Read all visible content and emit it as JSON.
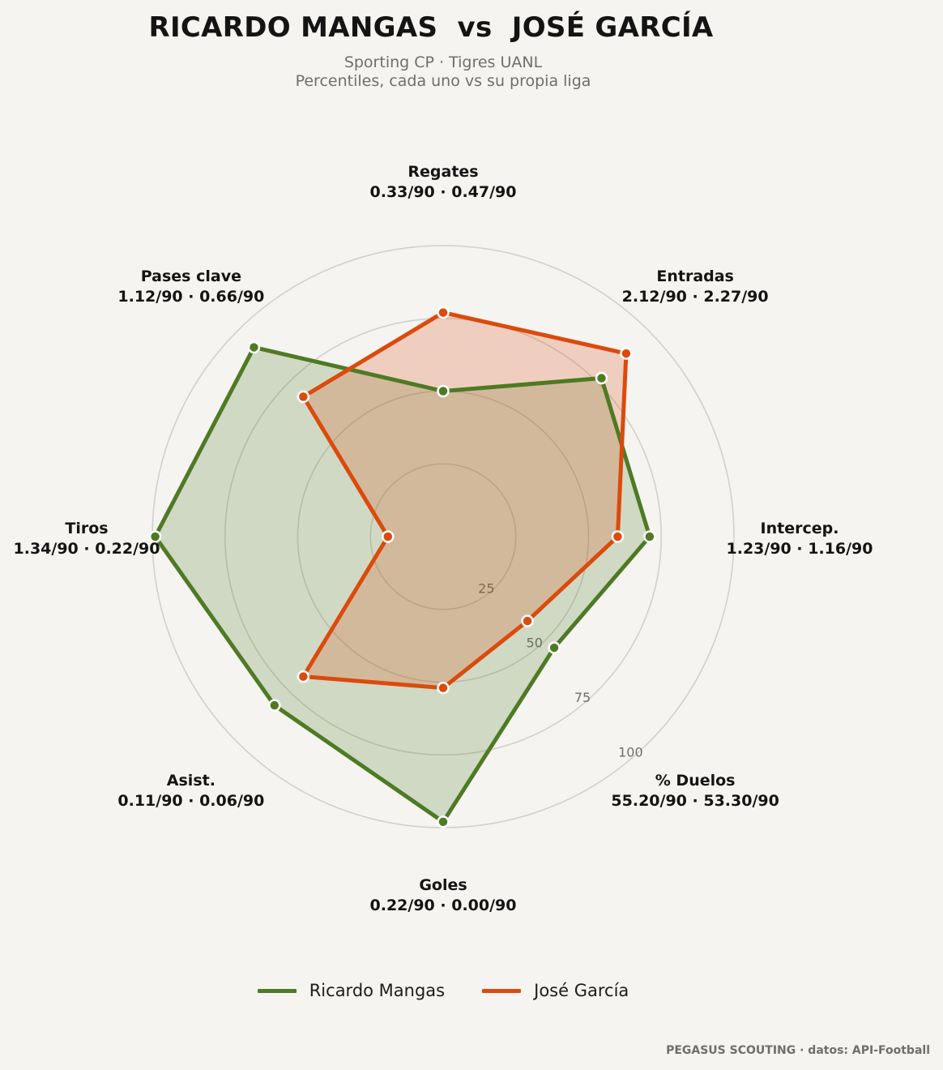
{
  "header": {
    "title": "RICARDO MANGAS  vs  JOSÉ GARCÍA",
    "subtitle_line1": "Sporting CP · Tigres UANL",
    "subtitle_line2": "Percentiles, cada uno vs su propia liga"
  },
  "chart_data": {
    "type": "radar",
    "axes": [
      {
        "label": "Regates",
        "values_text": "0.33/90 · 0.47/90"
      },
      {
        "label": "Entradas",
        "values_text": "2.12/90 · 2.27/90"
      },
      {
        "label": "Intercep.",
        "values_text": "1.23/90 · 1.16/90"
      },
      {
        "label": "% Duelos",
        "values_text": "55.20/90 · 53.30/90"
      },
      {
        "label": "Goles",
        "values_text": "0.22/90 · 0.00/90"
      },
      {
        "label": "Asist.",
        "values_text": "0.11/90 · 0.06/90"
      },
      {
        "label": "Tiros",
        "values_text": "1.34/90 · 0.22/90"
      },
      {
        "label": "Pases clave",
        "values_text": "1.12/90 · 0.66/90"
      }
    ],
    "r_range": [
      0,
      100
    ],
    "r_ticks": [
      "25",
      "50",
      "75",
      "100"
    ],
    "series": [
      {
        "name": "Ricardo Mangas",
        "color": "#4e7a24",
        "values": [
          50,
          77,
          71,
          54,
          98,
          82,
          99,
          92
        ]
      },
      {
        "name": "José García",
        "color": "#dc4a0c",
        "values": [
          77,
          89,
          60,
          41,
          52,
          68,
          19,
          68
        ]
      }
    ],
    "grid": true,
    "legend_position": "bottom"
  },
  "footer": {
    "credit": "PEGASUS SCOUTING · datos: API-Football"
  }
}
